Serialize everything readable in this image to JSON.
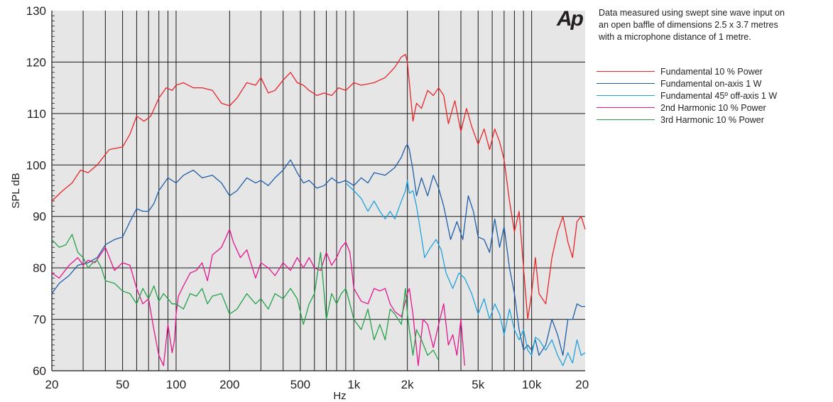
{
  "logo_text": "Ap",
  "note_lines": [
    "Data measured using swept sine wave input on",
    "an open baffle of dimensions 2.5 x 3.7 metres",
    "with a microphone distance of 1 metre."
  ],
  "chart_data": {
    "type": "line",
    "xlabel": "Hz",
    "ylabel": "SPL dB",
    "xscale": "log",
    "xlim": [
      20,
      20000
    ],
    "ylim": [
      60,
      130
    ],
    "xticks": [
      20,
      50,
      100,
      200,
      500,
      1000,
      2000,
      5000,
      10000,
      20000
    ],
    "xtick_labels": [
      "20",
      "50",
      "100",
      "200",
      "500",
      "1k",
      "2k",
      "5k",
      "10k",
      "20k"
    ],
    "yticks": [
      60,
      70,
      80,
      90,
      100,
      110,
      120,
      130
    ],
    "ytick_labels": [
      "60",
      "70",
      "80",
      "90",
      "100",
      "110",
      "120",
      "130"
    ],
    "grid": true,
    "legend_position": "right",
    "series": [
      {
        "name": "Fundamental 10 % Power",
        "color": "#e8262a",
        "x": [
          20,
          23,
          26,
          29,
          32,
          36,
          42,
          50,
          55,
          60,
          66,
          72,
          80,
          88,
          95,
          100,
          110,
          125,
          140,
          160,
          180,
          200,
          220,
          250,
          280,
          300,
          330,
          360,
          400,
          440,
          480,
          520,
          560,
          620,
          680,
          750,
          820,
          900,
          1000,
          1100,
          1300,
          1500,
          1700,
          1850,
          1950,
          2000,
          2050,
          2150,
          2250,
          2400,
          2600,
          2800,
          3000,
          3200,
          3400,
          3700,
          4000,
          4300,
          4600,
          5000,
          5400,
          5800,
          6200,
          6600,
          7000,
          7500,
          8000,
          8500,
          9000,
          9500,
          10000,
          10500,
          11000,
          12000,
          13000,
          14000,
          15000,
          16000,
          17000,
          18000,
          19000,
          20000
        ],
        "values": [
          93,
          95,
          96.5,
          99,
          98.5,
          100,
          103,
          103.5,
          106,
          109.5,
          108.5,
          109.5,
          113,
          115,
          114.5,
          115.5,
          116,
          115,
          115,
          114.5,
          112,
          111.5,
          113,
          116,
          115.5,
          117,
          114,
          114.5,
          116.5,
          118,
          116,
          115.5,
          114.5,
          113.5,
          114,
          113.5,
          115,
          114.5,
          116,
          115.5,
          116,
          117,
          119,
          121,
          121.5,
          120,
          116,
          108.5,
          112,
          111,
          114.5,
          113.5,
          115,
          113.5,
          108,
          112.5,
          106.5,
          111,
          107.5,
          104,
          107,
          103,
          107,
          104.5,
          101,
          93,
          87,
          91,
          80,
          70,
          75,
          82,
          75,
          73,
          82,
          87,
          90,
          85,
          82,
          89,
          90,
          87.5
        ]
      },
      {
        "name": "Fundamental on-axis 1 W",
        "color": "#1f5ea8",
        "x": [
          20,
          22,
          25,
          28,
          32,
          36,
          40,
          45,
          50,
          55,
          60,
          65,
          70,
          75,
          80,
          90,
          100,
          110,
          125,
          140,
          160,
          180,
          200,
          220,
          250,
          280,
          300,
          330,
          360,
          400,
          440,
          480,
          520,
          560,
          620,
          680,
          750,
          820,
          900,
          1000,
          1100,
          1200,
          1300,
          1500,
          1700,
          1850,
          1950,
          2000,
          2050,
          2150,
          2250,
          2400,
          2600,
          2800,
          3000,
          3200,
          3500,
          3800,
          4100,
          4400,
          4700,
          5000,
          5400,
          5800,
          6200,
          6600,
          7000,
          7500,
          8000,
          8500,
          9000,
          9500,
          10000,
          10500,
          11000,
          12000,
          13000,
          14000,
          15000,
          16000,
          17000,
          18000,
          19000,
          20000
        ],
        "values": [
          75,
          77,
          78.5,
          80.5,
          81,
          82,
          84.5,
          85.5,
          86,
          89,
          91.5,
          91,
          91,
          92.5,
          95,
          97.5,
          96.5,
          98,
          99,
          97.5,
          98,
          96.5,
          94,
          95,
          97.5,
          96.5,
          97,
          96,
          97.5,
          99,
          101,
          98.5,
          96.5,
          97,
          95.5,
          96,
          97.5,
          96.5,
          97,
          96,
          97.5,
          96.5,
          98.5,
          98,
          99.5,
          101.5,
          103.5,
          104,
          103,
          99,
          94,
          97.5,
          94,
          98,
          95.5,
          92,
          85.5,
          89,
          85.5,
          94,
          91,
          86,
          85.5,
          83,
          89.5,
          84,
          88,
          80,
          75,
          68,
          64,
          65,
          64,
          66,
          63,
          65,
          70,
          67,
          63,
          70,
          70,
          73,
          72.5,
          72.5
        ]
      },
      {
        "name": "Fundamental 45º off-axis 1 W",
        "color": "#1fa3dc",
        "x": [
          900,
          1000,
          1100,
          1200,
          1300,
          1400,
          1500,
          1600,
          1700,
          1850,
          1950,
          2000,
          2050,
          2150,
          2250,
          2400,
          2500,
          2700,
          2900,
          3100,
          3300,
          3600,
          3900,
          4200,
          4600,
          5000,
          5400,
          5800,
          6200,
          6600,
          7000,
          7500,
          8000,
          8500,
          9000,
          9500,
          10000,
          10500,
          11000,
          12000,
          13000,
          14000,
          15000,
          16000,
          17000,
          18000,
          19000,
          20000
        ],
        "values": [
          96.5,
          95,
          93.5,
          91,
          93,
          91,
          89.5,
          91,
          89.5,
          93,
          95,
          97,
          94.5,
          95,
          92,
          86,
          82,
          84,
          85.5,
          83.5,
          79,
          76,
          79,
          78,
          75,
          71,
          74,
          70,
          73,
          71,
          67,
          72,
          68,
          66,
          68,
          64,
          63,
          66.5,
          66,
          64,
          66,
          63,
          61,
          63.5,
          61.5,
          66,
          63,
          63.5
        ]
      },
      {
        "name": "2nd Harmonic 10 % Power",
        "color": "#e4168e",
        "x": [
          20,
          22,
          25,
          28,
          30,
          32,
          35,
          40,
          45,
          50,
          55,
          60,
          65,
          70,
          75,
          80,
          85,
          90,
          95,
          98,
          100,
          103,
          110,
          120,
          130,
          140,
          150,
          160,
          180,
          200,
          210,
          230,
          250,
          280,
          300,
          330,
          360,
          400,
          440,
          480,
          520,
          560,
          600,
          650,
          700,
          750,
          800,
          850,
          900,
          950,
          1000,
          1100,
          1200,
          1300,
          1400,
          1500,
          1600,
          1700,
          1850,
          2000,
          2050,
          2150,
          2300,
          2450,
          2600,
          2800,
          3000,
          3200,
          3400,
          3600,
          3800,
          4000,
          4200
        ],
        "values": [
          79,
          78,
          80.5,
          82,
          80.5,
          81.5,
          81,
          84,
          79.5,
          81,
          80.5,
          76,
          73,
          74,
          68,
          63,
          61,
          69,
          63.5,
          66,
          71,
          74.5,
          76.5,
          79,
          79.5,
          81,
          77.5,
          82.5,
          84,
          87.5,
          85,
          82,
          83.5,
          78,
          81,
          80,
          78.5,
          81,
          79.5,
          82,
          80,
          82,
          80,
          79.5,
          83,
          80.5,
          82,
          84,
          85,
          83,
          76,
          73.5,
          73,
          76,
          75.5,
          76,
          73,
          71.5,
          70.5,
          75,
          76,
          71,
          61,
          70,
          69,
          64.5,
          69,
          73,
          65,
          67,
          63,
          70,
          61
        ]
      },
      {
        "name": "3rd Harmonic 10 % Power",
        "color": "#24a149",
        "x": [
          20,
          22,
          24,
          26,
          28,
          30,
          32,
          34,
          36,
          38,
          40,
          45,
          50,
          55,
          60,
          65,
          70,
          75,
          80,
          85,
          90,
          95,
          100,
          110,
          120,
          130,
          140,
          150,
          160,
          180,
          200,
          220,
          250,
          280,
          300,
          330,
          360,
          400,
          440,
          480,
          520,
          560,
          600,
          650,
          700,
          750,
          800,
          850,
          900,
          950,
          1000,
          1100,
          1200,
          1300,
          1400,
          1500,
          1600,
          1700,
          1850,
          1950,
          2000,
          2050,
          2150,
          2250,
          2400,
          2600,
          2800,
          3000
        ],
        "values": [
          85.5,
          84,
          84.5,
          86.5,
          83,
          82,
          80,
          81,
          81.5,
          80,
          77.5,
          77,
          75.5,
          75,
          73,
          76,
          74,
          76.5,
          73.5,
          75,
          74,
          73,
          73,
          72,
          75,
          74.5,
          76,
          73,
          74.5,
          75,
          71,
          72,
          75,
          73,
          74,
          72,
          75,
          74,
          76,
          74,
          69,
          73,
          75,
          83,
          70,
          75,
          73,
          75,
          76,
          73,
          70,
          68,
          72,
          66,
          69,
          66,
          72,
          71,
          69,
          76,
          71,
          68,
          63,
          68,
          66,
          63,
          64,
          62
        ]
      }
    ]
  }
}
